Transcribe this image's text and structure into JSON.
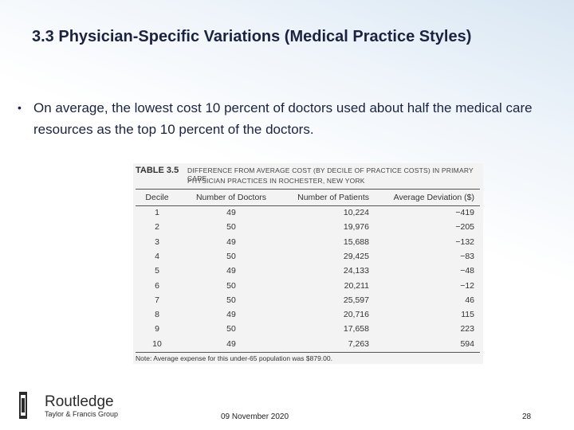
{
  "header": {
    "title": "3.3 Physician-Specific Variations (Medical Practice Styles)"
  },
  "bullets": [
    "On average, the lowest cost 10 percent of doctors used about half the medical care resources as the top 10 percent of the doctors."
  ],
  "table": {
    "label": "TABLE 3.5",
    "caption": [
      "DIFFERENCE FROM AVERAGE COST (BY DECILE OF PRACTICE COSTS) IN PRIMARY CARE",
      "PHYSICIAN PRACTICES IN ROCHESTER, NEW YORK"
    ],
    "columns": [
      "Decile",
      "Number of Doctors",
      "Number of Patients",
      "Average Deviation ($)"
    ],
    "rows": [
      [
        "1",
        "49",
        "10,224",
        "−419"
      ],
      [
        "2",
        "50",
        "19,976",
        "−205"
      ],
      [
        "3",
        "49",
        "15,688",
        "−132"
      ],
      [
        "4",
        "50",
        "29,425",
        "−83"
      ],
      [
        "5",
        "49",
        "24,133",
        "−48"
      ],
      [
        "6",
        "50",
        "20,211",
        "−12"
      ],
      [
        "7",
        "50",
        "25,597",
        "46"
      ],
      [
        "8",
        "49",
        "20,716",
        "115"
      ],
      [
        "9",
        "50",
        "17,658",
        "223"
      ],
      [
        "10",
        "49",
        "7,263",
        "594"
      ]
    ],
    "note": "Note: Average expense for this under-65 population was $879.00."
  },
  "footer": {
    "publisher": "Routledge",
    "publisher_group": "Taylor & Francis Group",
    "date": "09 November 2020",
    "page": "28"
  }
}
